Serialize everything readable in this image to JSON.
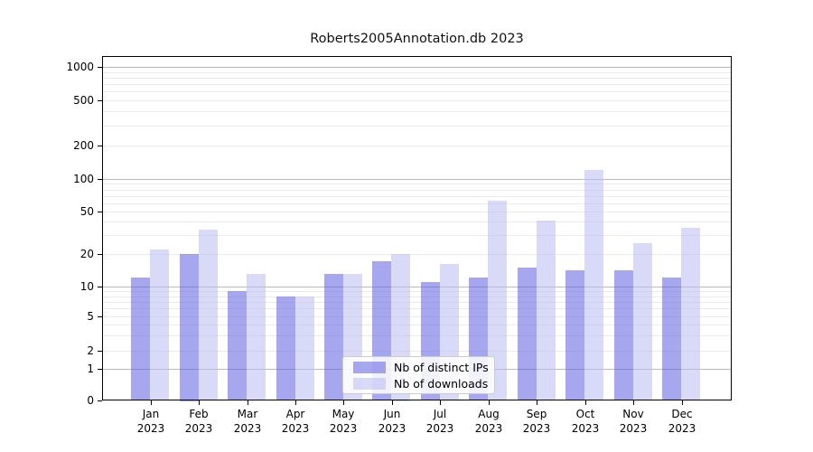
{
  "figure": {
    "title": "Roberts2005Annotation.db 2023"
  },
  "chart_data": {
    "type": "bar",
    "title": "Roberts2005Annotation.db 2023",
    "categories": [
      "Jan 2023",
      "Feb 2023",
      "Mar 2023",
      "Apr 2023",
      "May 2023",
      "Jun 2023",
      "Jul 2023",
      "Aug 2023",
      "Sep 2023",
      "Oct 2023",
      "Nov 2023",
      "Dec 2023"
    ],
    "x_tick_months": [
      "Jan",
      "Feb",
      "Mar",
      "Apr",
      "May",
      "Jun",
      "Jul",
      "Aug",
      "Sep",
      "Oct",
      "Nov",
      "Dec"
    ],
    "x_tick_year": "2023",
    "series": [
      {
        "name": "Nb of distinct IPs",
        "color": "rgba(94,94,228,0.55)",
        "values": [
          12,
          20,
          9,
          8,
          13,
          17,
          11,
          12,
          15,
          14,
          14,
          12
        ]
      },
      {
        "name": "Nb of downloads",
        "color": "rgba(185,185,242,0.55)",
        "values": [
          22,
          34,
          13,
          8,
          13,
          20,
          16,
          63,
          41,
          120,
          25,
          35
        ]
      }
    ],
    "yscale": "symlog",
    "ytick_values": [
      0,
      1,
      2,
      5,
      10,
      20,
      50,
      100,
      200,
      500,
      1000
    ],
    "ytick_labels": [
      "0",
      "1",
      "2",
      "5",
      "10",
      "20",
      "50",
      "100",
      "200",
      "500",
      "1000"
    ],
    "ylim": [
      0,
      1200
    ],
    "grid": true,
    "grid_major_at": [
      1,
      10,
      100,
      1000
    ],
    "grid_minor_at": [
      2,
      3,
      4,
      5,
      6,
      7,
      8,
      9,
      20,
      30,
      40,
      50,
      60,
      70,
      80,
      90,
      200,
      300,
      400,
      500,
      600,
      700,
      800,
      900
    ],
    "legend_position": "lower center"
  },
  "colors": {
    "background": "#ffffff",
    "axis": "#000000",
    "major_grid": "#bbbbbb",
    "minor_grid": "#ebebeb",
    "legend_border": "#cccccc",
    "ips_bar": "rgba(94,94,228,0.55)",
    "downloads_bar": "rgba(185,185,242,0.55)"
  }
}
